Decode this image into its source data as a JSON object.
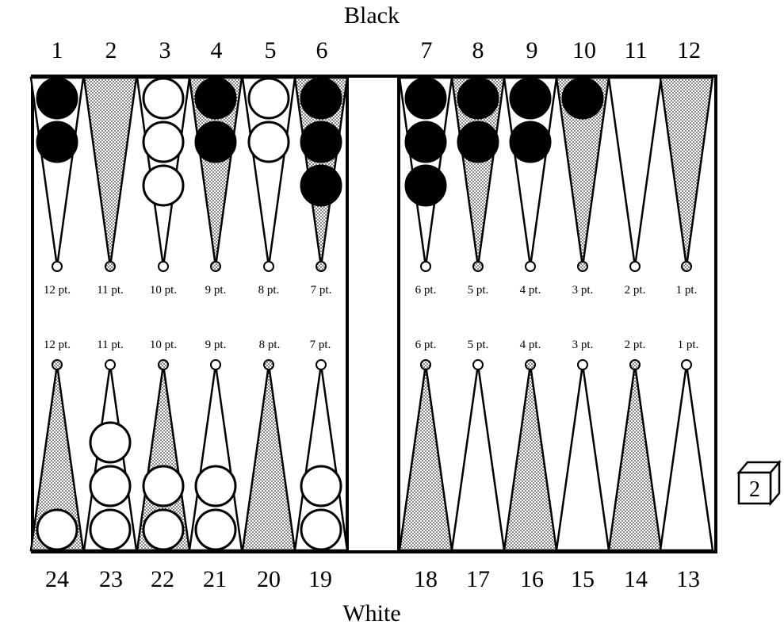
{
  "labels": {
    "top": "Black",
    "bottom": "White"
  },
  "die": {
    "value": "2"
  },
  "colors": {
    "board_border": "#000000",
    "shaded_point": "#c9c9c9",
    "black_checker": "#000000",
    "white_checker": "#ffffff"
  },
  "top_numbers": [
    "1",
    "2",
    "3",
    "4",
    "5",
    "6",
    "7",
    "8",
    "9",
    "10",
    "11",
    "12"
  ],
  "bottom_numbers": [
    "24",
    "23",
    "22",
    "21",
    "20",
    "19",
    "18",
    "17",
    "16",
    "15",
    "14",
    "13"
  ],
  "top_pip_labels": [
    "12 pt.",
    "11 pt.",
    "10 pt.",
    "9 pt.",
    "8 pt.",
    "7 pt.",
    "6 pt.",
    "5 pt.",
    "4 pt.",
    "3 pt.",
    "2 pt.",
    "1 pt."
  ],
  "bottom_pip_labels": [
    "12 pt.",
    "11 pt.",
    "10 pt.",
    "9 pt.",
    "8 pt.",
    "7 pt.",
    "6 pt.",
    "5 pt.",
    "4 pt.",
    "3 pt.",
    "2 pt.",
    "1 pt."
  ],
  "checkers": {
    "top": [
      {
        "color": "black",
        "count": 2
      },
      {
        "color": "none",
        "count": 0
      },
      {
        "color": "white",
        "count": 3
      },
      {
        "color": "black",
        "count": 2
      },
      {
        "color": "white",
        "count": 2
      },
      {
        "color": "black",
        "count": 3
      },
      {
        "color": "black",
        "count": 3
      },
      {
        "color": "black",
        "count": 2
      },
      {
        "color": "black",
        "count": 2
      },
      {
        "color": "black",
        "count": 1
      },
      {
        "color": "none",
        "count": 0
      },
      {
        "color": "none",
        "count": 0
      }
    ],
    "bottom": [
      {
        "color": "white",
        "count": 1
      },
      {
        "color": "white",
        "count": 3
      },
      {
        "color": "white",
        "count": 2
      },
      {
        "color": "white",
        "count": 2
      },
      {
        "color": "none",
        "count": 0
      },
      {
        "color": "white",
        "count": 2
      },
      {
        "color": "none",
        "count": 0
      },
      {
        "color": "none",
        "count": 0
      },
      {
        "color": "none",
        "count": 0
      },
      {
        "color": "none",
        "count": 0
      },
      {
        "color": "none",
        "count": 0
      },
      {
        "color": "none",
        "count": 0
      }
    ]
  }
}
